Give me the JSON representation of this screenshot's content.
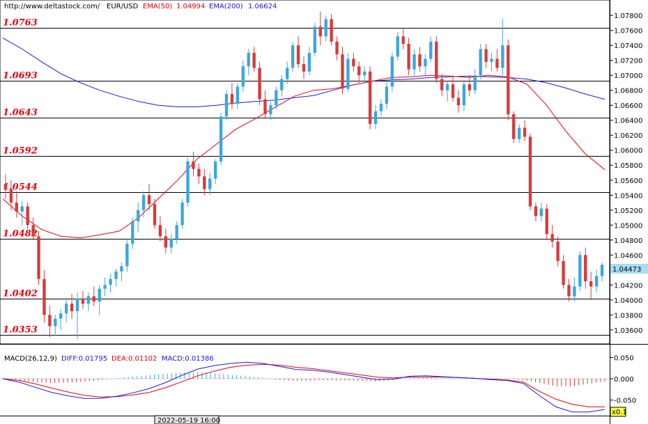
{
  "header": {
    "url": "http://www.deltastock.com/",
    "symbol": "EUR/USD",
    "ema50_label": "EMA(50)",
    "ema50_value": "1.04994",
    "ema200_label": "EMA(200)",
    "ema200_value": "1.06624"
  },
  "macd_header": {
    "label": "MACD(26,12,9)",
    "diff": "DIFF:0.01795",
    "dea": "DEA:0.01102",
    "macd": "MACD:0.01386"
  },
  "colors": {
    "bull": "#3aa7e0",
    "bear": "#d93a3a",
    "ema50": "#e8000b",
    "ema200": "#1a1adf",
    "levels": "#e8000b"
  },
  "chart_data": [
    {
      "type": "candlestick",
      "ylim": [
        1.0345,
        1.0795
      ],
      "y_ticks": [
        "1.07800",
        "1.07600",
        "1.07400",
        "1.07200",
        "1.07000",
        "1.06800",
        "1.06600",
        "1.06400",
        "1.06200",
        "1.06000",
        "1.05800",
        "1.05600",
        "1.05400",
        "1.05200",
        "1.05000",
        "1.04800",
        "1.04600",
        "1.04400",
        "1.04200",
        "1.04000",
        "1.03800",
        "1.03600"
      ],
      "current_price": "1.04473",
      "levels": [
        {
          "label": "1.0763",
          "value": 1.0763
        },
        {
          "label": "1.0693",
          "value": 1.0693
        },
        {
          "label": "1.0643",
          "value": 1.0643
        },
        {
          "label": "1.0592",
          "value": 1.0592
        },
        {
          "label": "1.0544",
          "value": 1.0544
        },
        {
          "label": "1.0482",
          "value": 1.0482
        },
        {
          "label": "1.0402",
          "value": 1.0402
        },
        {
          "label": "1.0353",
          "value": 1.0353
        }
      ],
      "ema200": [
        1.075,
        1.0735,
        1.0718,
        1.0702,
        1.069,
        1.068,
        1.0672,
        1.0665,
        1.066,
        1.0658,
        1.0658,
        1.066,
        1.0663,
        1.0665,
        1.0667,
        1.067,
        1.0673,
        1.068,
        1.0687,
        1.0692,
        1.0694,
        1.0695,
        1.0697,
        1.0698,
        1.0699,
        1.0698,
        1.0697,
        1.0695,
        1.069,
        1.0683,
        1.0675,
        1.0668
      ],
      "ema50": [
        1.0535,
        1.0512,
        1.0494,
        1.0485,
        1.0483,
        1.0487,
        1.0492,
        1.051,
        1.0535,
        1.056,
        1.0588,
        1.0608,
        1.0628,
        1.0642,
        1.0657,
        1.0672,
        1.068,
        1.0682,
        1.0687,
        1.0692,
        1.0697,
        1.0698,
        1.07,
        1.0699,
        1.0697,
        1.07,
        1.0698,
        1.0688,
        1.066,
        1.0625,
        1.0595,
        1.0574
      ],
      "candles": [
        [
          1.0555,
          1.0568,
          1.0535,
          1.0548
        ],
        [
          1.0548,
          1.056,
          1.052,
          1.053
        ],
        [
          1.053,
          1.0545,
          1.051,
          1.0518
        ],
        [
          1.0518,
          1.0532,
          1.05,
          1.0525
        ],
        [
          1.0525,
          1.053,
          1.0495,
          1.05
        ],
        [
          1.05,
          1.051,
          1.048,
          1.0485
        ],
        [
          1.0485,
          1.0492,
          1.042,
          1.0428
        ],
        [
          1.0428,
          1.044,
          1.037,
          1.038
        ],
        [
          1.038,
          1.0392,
          1.035,
          1.0365
        ],
        [
          1.0365,
          1.038,
          1.0352,
          1.0375
        ],
        [
          1.0375,
          1.0388,
          1.036,
          1.0382
        ],
        [
          1.0382,
          1.04,
          1.037,
          1.0395
        ],
        [
          1.0395,
          1.0408,
          1.0375,
          1.0385
        ],
        [
          1.0385,
          1.041,
          1.0348,
          1.0402
        ],
        [
          1.0402,
          1.0412,
          1.0388,
          1.0395
        ],
        [
          1.0395,
          1.041,
          1.0385,
          1.0405
        ],
        [
          1.0405,
          1.0418,
          1.0392,
          1.0398
        ],
        [
          1.0398,
          1.042,
          1.038,
          1.0415
        ],
        [
          1.0415,
          1.043,
          1.0405,
          1.042
        ],
        [
          1.042,
          1.0435,
          1.041,
          1.0428
        ],
        [
          1.0428,
          1.0442,
          1.0418,
          1.0438
        ],
        [
          1.0438,
          1.045,
          1.0425,
          1.0445
        ],
        [
          1.0445,
          1.048,
          1.0438,
          1.0475
        ],
        [
          1.0475,
          1.051,
          1.0468,
          1.0505
        ],
        [
          1.0505,
          1.053,
          1.049,
          1.052
        ],
        [
          1.052,
          1.0545,
          1.051,
          1.054
        ],
        [
          1.054,
          1.0555,
          1.052,
          1.0528
        ],
        [
          1.0528,
          1.0535,
          1.0495,
          1.05
        ],
        [
          1.05,
          1.0512,
          1.0478,
          1.0485
        ],
        [
          1.0485,
          1.0495,
          1.0462,
          1.047
        ],
        [
          1.047,
          1.0488,
          1.0462,
          1.0482
        ],
        [
          1.0482,
          1.0505,
          1.0475,
          1.05
        ],
        [
          1.05,
          1.0535,
          1.0495,
          1.053
        ],
        [
          1.053,
          1.059,
          1.0525,
          1.0585
        ],
        [
          1.0585,
          1.0598,
          1.0565,
          1.0575
        ],
        [
          1.0575,
          1.0582,
          1.0555,
          1.0565
        ],
        [
          1.0565,
          1.0575,
          1.054,
          1.0548
        ],
        [
          1.0548,
          1.057,
          1.054,
          1.0562
        ],
        [
          1.0562,
          1.0588,
          1.0555,
          1.0585
        ],
        [
          1.0585,
          1.065,
          1.058,
          1.0645
        ],
        [
          1.0645,
          1.068,
          1.064,
          1.0675
        ],
        [
          1.0675,
          1.069,
          1.0655,
          1.0662
        ],
        [
          1.0662,
          1.069,
          1.0655,
          1.0685
        ],
        [
          1.0685,
          1.072,
          1.0678,
          1.0712
        ],
        [
          1.0712,
          1.0735,
          1.07,
          1.073
        ],
        [
          1.073,
          1.0738,
          1.0705,
          1.071
        ],
        [
          1.071,
          1.0718,
          1.066,
          1.0668
        ],
        [
          1.0668,
          1.068,
          1.0642,
          1.0648
        ],
        [
          1.0648,
          1.0665,
          1.064,
          1.066
        ],
        [
          1.066,
          1.0685,
          1.0655,
          1.068
        ],
        [
          1.068,
          1.07,
          1.0672,
          1.0695
        ],
        [
          1.0695,
          1.0718,
          1.0688,
          1.071
        ],
        [
          1.071,
          1.0745,
          1.0705,
          1.074
        ],
        [
          1.074,
          1.0752,
          1.071,
          1.0715
        ],
        [
          1.0715,
          1.0725,
          1.0695,
          1.0705
        ],
        [
          1.0705,
          1.0738,
          1.07,
          1.073
        ],
        [
          1.073,
          1.077,
          1.0725,
          1.0765
        ],
        [
          1.0765,
          1.0785,
          1.074,
          1.0752
        ],
        [
          1.0752,
          1.078,
          1.0745,
          1.0775
        ],
        [
          1.0775,
          1.0782,
          1.074,
          1.0745
        ],
        [
          1.0745,
          1.0752,
          1.072,
          1.0728
        ],
        [
          1.0728,
          1.0738,
          1.0675,
          1.0682
        ],
        [
          1.0682,
          1.073,
          1.0678,
          1.0722
        ],
        [
          1.0722,
          1.073,
          1.0705,
          1.0712
        ],
        [
          1.0712,
          1.0718,
          1.069,
          1.07
        ],
        [
          1.07,
          1.0712,
          1.069,
          1.0705
        ],
        [
          1.0705,
          1.0712,
          1.0628,
          1.0635
        ],
        [
          1.0635,
          1.066,
          1.0628,
          1.0652
        ],
        [
          1.0652,
          1.0668,
          1.0645,
          1.0662
        ],
        [
          1.0662,
          1.069,
          1.0655,
          1.0685
        ],
        [
          1.0685,
          1.073,
          1.0678,
          1.0725
        ],
        [
          1.0725,
          1.0758,
          1.072,
          1.0752
        ],
        [
          1.0752,
          1.0762,
          1.0735,
          1.0742
        ],
        [
          1.0742,
          1.075,
          1.07,
          1.0708
        ],
        [
          1.0708,
          1.0735,
          1.07,
          1.0728
        ],
        [
          1.0728,
          1.0738,
          1.0705,
          1.0712
        ],
        [
          1.0712,
          1.0728,
          1.07,
          1.0722
        ],
        [
          1.0722,
          1.0752,
          1.0718,
          1.0745
        ],
        [
          1.0745,
          1.0752,
          1.069,
          1.0695
        ],
        [
          1.0695,
          1.0702,
          1.0672,
          1.068
        ],
        [
          1.068,
          1.0692,
          1.0665,
          1.0688
        ],
        [
          1.0688,
          1.07,
          1.0665,
          1.067
        ],
        [
          1.067,
          1.068,
          1.065,
          1.066
        ],
        [
          1.066,
          1.0692,
          1.0652,
          1.0688
        ],
        [
          1.0688,
          1.07,
          1.0672,
          1.068
        ],
        [
          1.068,
          1.0708,
          1.0675,
          1.07
        ],
        [
          1.07,
          1.0742,
          1.0695,
          1.0735
        ],
        [
          1.0735,
          1.0742,
          1.071,
          1.0718
        ],
        [
          1.0718,
          1.073,
          1.0705,
          1.0722
        ],
        [
          1.0722,
          1.0735,
          1.0705,
          1.071
        ],
        [
          1.071,
          1.0775,
          1.07,
          1.074
        ],
        [
          1.074,
          1.0748,
          1.064,
          1.0648
        ],
        [
          1.0648,
          1.0652,
          1.061,
          1.0615
        ],
        [
          1.0615,
          1.0635,
          1.061,
          1.063
        ],
        [
          1.063,
          1.064,
          1.0612,
          1.0618
        ],
        [
          1.0618,
          1.0622,
          1.052,
          1.0525
        ],
        [
          1.0525,
          1.053,
          1.0505,
          1.0512
        ],
        [
          1.0512,
          1.053,
          1.0505,
          1.0522
        ],
        [
          1.0522,
          1.0528,
          1.048,
          1.0488
        ],
        [
          1.0488,
          1.05,
          1.047,
          1.0478
        ],
        [
          1.0478,
          1.0485,
          1.0445,
          1.0452
        ],
        [
          1.0452,
          1.046,
          1.0415,
          1.042
        ],
        [
          1.042,
          1.0428,
          1.0398,
          1.0405
        ],
        [
          1.0405,
          1.043,
          1.0398,
          1.0418
        ],
        [
          1.0418,
          1.0465,
          1.0412,
          1.046
        ],
        [
          1.046,
          1.047,
          1.0415,
          1.0425
        ],
        [
          1.0425,
          1.0438,
          1.04,
          1.0418
        ],
        [
          1.0418,
          1.044,
          1.041,
          1.0432
        ],
        [
          1.0432,
          1.045,
          1.0425,
          1.0447
        ]
      ]
    },
    {
      "type": "macd",
      "ylim": [
        -0.085,
        0.072
      ],
      "y_ticks": [
        {
          "label": "0.050",
          "value": 0.05
        },
        {
          "label": "0.000",
          "value": 0.0
        },
        {
          "label": "-0.050",
          "value": -0.05
        }
      ],
      "diff": [
        0.0,
        -0.008,
        -0.02,
        -0.032,
        -0.04,
        -0.046,
        -0.046,
        -0.041,
        -0.033,
        -0.023,
        -0.009,
        0.008,
        0.023,
        0.031,
        0.036,
        0.039,
        0.036,
        0.029,
        0.022,
        0.02,
        0.016,
        0.01,
        0.004,
        -0.002,
        -0.001,
        0.006,
        0.007,
        0.005,
        0.003,
        0.001,
        -0.002,
        -0.004,
        -0.011,
        -0.04,
        -0.066,
        -0.078,
        -0.078,
        -0.072
      ],
      "dea": [
        0.0,
        -0.004,
        -0.012,
        -0.022,
        -0.031,
        -0.039,
        -0.043,
        -0.042,
        -0.038,
        -0.032,
        -0.021,
        -0.007,
        0.007,
        0.018,
        0.027,
        0.032,
        0.034,
        0.032,
        0.027,
        0.024,
        0.019,
        0.014,
        0.009,
        0.004,
        0.002,
        0.004,
        0.004,
        0.004,
        0.003,
        0.001,
        -0.001,
        -0.003,
        -0.008,
        -0.03,
        -0.048,
        -0.06,
        -0.066,
        -0.066
      ],
      "histogram": [
        0.0,
        -0.004,
        -0.008,
        -0.01,
        -0.009,
        -0.007,
        -0.003,
        0.001,
        0.005,
        0.009,
        0.012,
        0.015,
        0.016,
        0.013,
        0.009,
        0.007,
        0.002,
        -0.003,
        -0.005,
        -0.004,
        -0.003,
        -0.004,
        -0.005,
        -0.006,
        -0.003,
        0.002,
        0.003,
        0.001,
        0.0,
        0.0,
        -0.001,
        -0.001,
        -0.003,
        -0.01,
        -0.018,
        -0.018,
        -0.012,
        -0.006
      ],
      "badge": "x0.1"
    }
  ],
  "footer": {
    "date_label": "2022-05-19 16:00"
  }
}
